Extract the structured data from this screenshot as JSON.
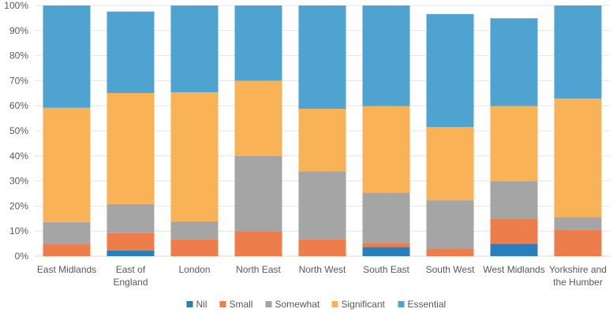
{
  "chart_data": {
    "type": "bar",
    "stacked": true,
    "categories": [
      [
        "East Midlands"
      ],
      [
        "East of",
        "England"
      ],
      [
        "London"
      ],
      [
        "North East"
      ],
      [
        "North West"
      ],
      [
        "South East"
      ],
      [
        "South West"
      ],
      [
        "West Midlands"
      ],
      [
        "Yorkshire and",
        "the Humber"
      ]
    ],
    "series": [
      {
        "name": "Nil",
        "color": "#2a7fba",
        "values": [
          0,
          2.3,
          0,
          0,
          0,
          3.6,
          0,
          4.9,
          0
        ]
      },
      {
        "name": "Small",
        "color": "#ed7d4a",
        "values": [
          4.7,
          6.9,
          6.7,
          10,
          6.7,
          1.7,
          3.1,
          10.1,
          10.4
        ]
      },
      {
        "name": "Somewhat",
        "color": "#a5a5a5",
        "values": [
          8.9,
          11.6,
          7.1,
          30,
          27.2,
          20.0,
          19.2,
          14.9,
          5.2
        ]
      },
      {
        "name": "Significant",
        "color": "#f9b256",
        "values": [
          45.6,
          44.3,
          51.6,
          30,
          24.9,
          34.6,
          29.2,
          30.0,
          47.3
        ]
      },
      {
        "name": "Essential",
        "color": "#4ea3d0",
        "values": [
          40.8,
          32.5,
          34.6,
          30,
          41.2,
          40.1,
          45.1,
          35.0,
          37.1
        ]
      }
    ],
    "yticks": [
      "0%",
      "10%",
      "20%",
      "30%",
      "40%",
      "50%",
      "60%",
      "70%",
      "80%",
      "90%",
      "100%"
    ],
    "ylim": [
      0,
      100
    ],
    "grid": true,
    "legend": "bottom",
    "title": "",
    "xlabel": "",
    "ylabel": ""
  }
}
